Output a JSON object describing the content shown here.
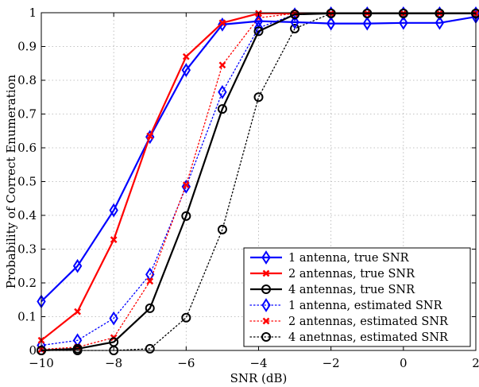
{
  "chart_data": {
    "type": "line",
    "xlabel": "SNR (dB)",
    "ylabel": "Probability of Correct Enumeration",
    "xlim": [
      -10,
      2
    ],
    "ylim": [
      0,
      1
    ],
    "xticks": [
      -10,
      -8,
      -6,
      -4,
      -2,
      0,
      2
    ],
    "xtick_labels": [
      "−10",
      "−8",
      "−6",
      "−4",
      "−2",
      "0",
      "2"
    ],
    "yticks": [
      0,
      0.1,
      0.2,
      0.3,
      0.4,
      0.5,
      0.6,
      0.7,
      0.8,
      0.9,
      1
    ],
    "ytick_labels": [
      "0",
      "0.1",
      "0.2",
      "0.3",
      "0.4",
      "0.5",
      "0.6",
      "0.7",
      "0.8",
      "0.9",
      "1"
    ],
    "grid": true,
    "legend_position": "bottom-right",
    "x": [
      -10,
      -9,
      -8,
      -7,
      -6,
      -5,
      -4,
      -3,
      -2,
      -1,
      0,
      1,
      2
    ],
    "series": [
      {
        "name": "1 antenna, true SNR",
        "color": "#0000ff",
        "line": "solid",
        "marker": "diamond",
        "values": [
          0.145,
          0.25,
          0.415,
          0.632,
          0.83,
          0.965,
          0.975,
          0.972,
          0.968,
          0.968,
          0.97,
          0.97,
          0.988
        ]
      },
      {
        "name": "2 antennas, true SNR",
        "color": "#ff0000",
        "line": "solid",
        "marker": "x",
        "values": [
          0.03,
          0.115,
          0.328,
          0.635,
          0.87,
          0.97,
          0.998,
          0.998,
          0.998,
          0.998,
          0.998,
          0.998,
          0.998
        ]
      },
      {
        "name": "4 antennas, true SNR",
        "color": "#000000",
        "line": "solid",
        "marker": "circle",
        "values": [
          0.0,
          0.005,
          0.025,
          0.125,
          0.398,
          0.715,
          0.945,
          0.995,
          0.998,
          0.998,
          0.998,
          0.998,
          0.998
        ]
      },
      {
        "name": "1 antenna, estimated SNR",
        "color": "#0000ff",
        "line": "dotted",
        "marker": "diamond",
        "values": [
          0.015,
          0.03,
          0.095,
          0.225,
          0.485,
          0.765,
          0.955,
          0.995,
          0.998,
          0.998,
          0.998,
          0.998,
          0.998
        ]
      },
      {
        "name": "2 antennas, estimated SNR",
        "color": "#ff0000",
        "line": "dotted",
        "marker": "x",
        "values": [
          0.003,
          0.01,
          0.038,
          0.205,
          0.49,
          0.845,
          0.985,
          0.998,
          0.998,
          0.998,
          0.998,
          0.998,
          0.998
        ]
      },
      {
        "name": "4 anetnnas, estimated SNR",
        "color": "#000000",
        "line": "dotted",
        "marker": "circle",
        "values": [
          0.0,
          0.0,
          0.0,
          0.005,
          0.097,
          0.358,
          0.75,
          0.953,
          0.998,
          0.998,
          0.998,
          0.998,
          0.998
        ]
      }
    ]
  }
}
